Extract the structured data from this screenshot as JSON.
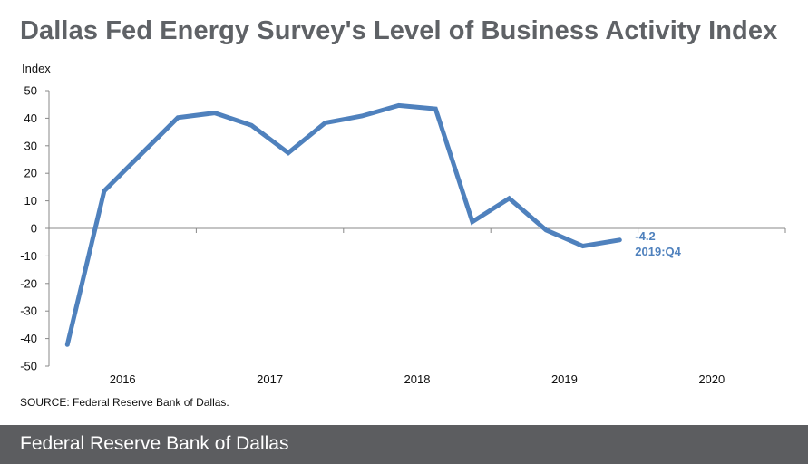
{
  "title": "Dallas Fed Energy Survey's Level of Business Activity Index",
  "source": "SOURCE:  Federal Reserve  Bank of Dallas.",
  "footer": {
    "brand": "Federal Reserve Bank of Dallas"
  },
  "colors": {
    "line": "#4f81bd",
    "title": "#5f6266",
    "footer_bg": "#5c5d60"
  },
  "chart_data": {
    "type": "line",
    "title": "Dallas Fed Energy Survey's Level of Business Activity Index",
    "ylabel": "Index",
    "xlabel": "",
    "ylim": [
      -50,
      50
    ],
    "yticks": [
      50,
      40,
      30,
      20,
      10,
      0,
      -10,
      -20,
      -30,
      -40,
      -50
    ],
    "x_tick_labels": [
      "2016",
      "2017",
      "2018",
      "2019",
      "2020"
    ],
    "series": [
      {
        "name": "Level of Business Activity Index",
        "x": [
          "2016:Q1",
          "2016:Q2",
          "2016:Q3",
          "2016:Q4",
          "2017:Q1",
          "2017:Q2",
          "2017:Q3",
          "2017:Q4",
          "2018:Q1",
          "2018:Q2",
          "2018:Q3",
          "2018:Q4",
          "2019:Q1",
          "2019:Q2",
          "2019:Q3",
          "2019:Q4"
        ],
        "values": [
          -42.2,
          13.6,
          26.9,
          40.2,
          41.9,
          37.4,
          27.4,
          38.3,
          40.8,
          44.6,
          43.4,
          2.4,
          10.9,
          -0.6,
          -6.4,
          -4.2
        ]
      }
    ],
    "annotation": {
      "value_label": "-4.2",
      "period_label": "2019:Q4"
    },
    "grid": false
  }
}
